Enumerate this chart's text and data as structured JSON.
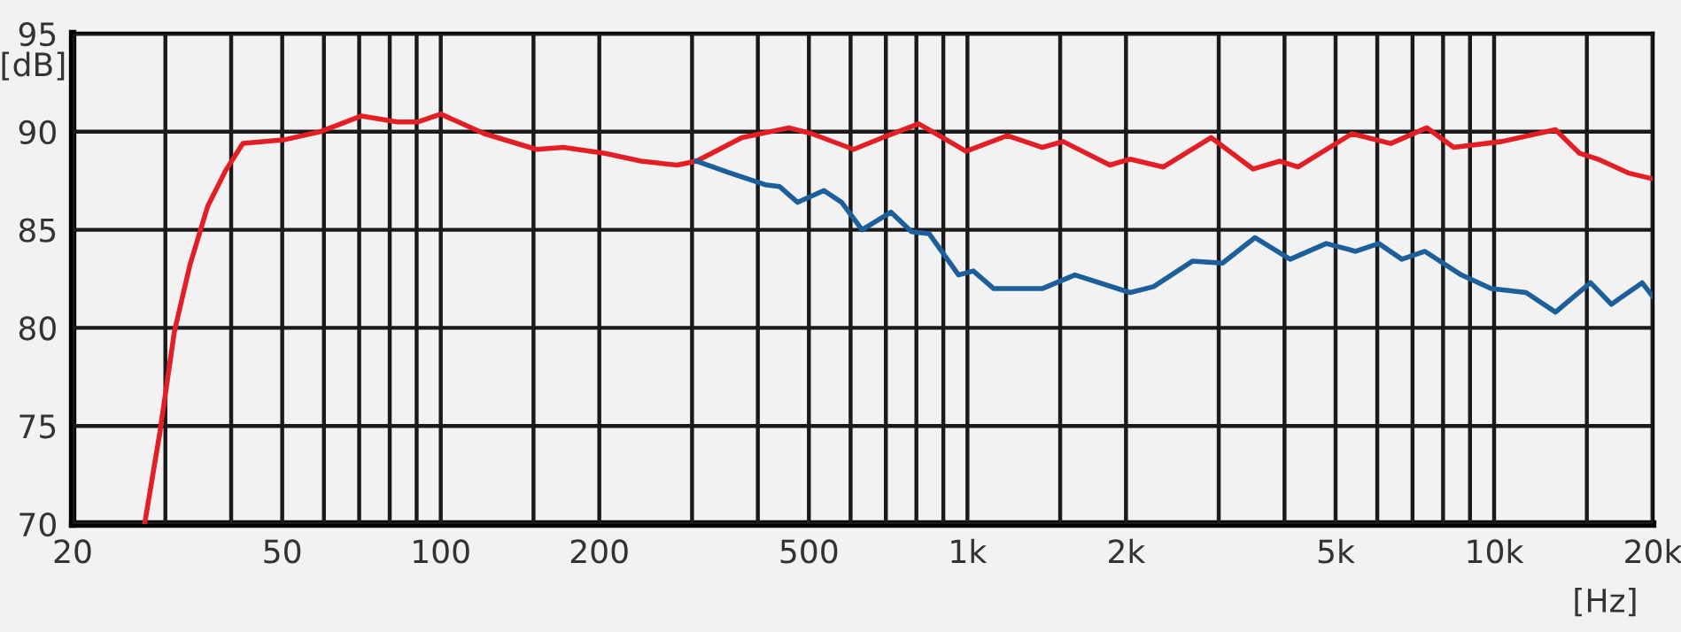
{
  "chart_data": {
    "type": "line",
    "xlabel": "[Hz]",
    "ylabel": "[dB]",
    "log": "x",
    "grid": true,
    "xlim": [
      20,
      20000
    ],
    "ylim": [
      70,
      95
    ],
    "xticks": [
      20,
      {
        "value": 30,
        "label": null
      },
      {
        "value": 40,
        "label": null
      },
      50,
      {
        "value": 60,
        "label": null
      },
      {
        "value": 70,
        "label": null
      },
      {
        "value": 80,
        "label": null
      },
      {
        "value": 90,
        "label": null
      },
      100,
      {
        "value": 150,
        "label": null
      },
      200,
      {
        "value": 300,
        "label": null
      },
      {
        "value": 400,
        "label": null
      },
      500,
      {
        "value": 600,
        "label": null
      },
      {
        "value": 700,
        "label": null
      },
      {
        "value": 800,
        "label": null
      },
      {
        "value": 900,
        "label": null
      },
      {
        "value": 1000,
        "label": "1k"
      },
      {
        "value": 1500,
        "label": null
      },
      {
        "value": 2000,
        "label": "2k"
      },
      {
        "value": 3000,
        "label": null
      },
      {
        "value": 4000,
        "label": null
      },
      {
        "value": 5000,
        "label": "5k"
      },
      {
        "value": 6000,
        "label": null
      },
      {
        "value": 7000,
        "label": null
      },
      {
        "value": 8000,
        "label": null
      },
      {
        "value": 9000,
        "label": null
      },
      {
        "value": 10000,
        "label": "10k"
      },
      {
        "value": 15000,
        "label": null
      },
      {
        "value": 20000,
        "label": "20k"
      }
    ],
    "yticks": [
      70,
      75,
      80,
      85,
      90,
      95
    ],
    "series": [
      {
        "color": "#e31e24",
        "x": [
          27.4,
          29.3,
          31.2,
          33.4,
          36.1,
          39,
          42.1,
          50.7,
          59,
          70.6,
          82.7,
          90.6,
          100,
          121,
          152,
          171,
          205,
          240,
          281,
          306,
          373,
          458,
          506,
          608,
          690,
          808,
          897,
          994,
          1190,
          1388,
          1519,
          1864,
          2036,
          2355,
          2903,
          3488,
          3923,
          4243,
          5370,
          6364,
          7450,
          8380,
          10340,
          13080,
          14530,
          15750,
          17960,
          20000
        ],
        "values": [
          70,
          74.7,
          79.8,
          83.2,
          86.2,
          88,
          89.4,
          89.6,
          90,
          90.8,
          90.5,
          90.5,
          90.9,
          89.9,
          89.1,
          89.2,
          88.9,
          88.5,
          88.3,
          88.5,
          89.7,
          90.2,
          89.9,
          89.1,
          89.7,
          90.4,
          89.7,
          89,
          89.8,
          89.2,
          89.5,
          88.3,
          88.6,
          88.2,
          89.7,
          88.1,
          88.5,
          88.2,
          89.9,
          89.4,
          90.2,
          89.2,
          89.5,
          90.1,
          88.9,
          88.6,
          87.9,
          87.6
        ]
      },
      {
        "color": "#1c5f9a",
        "x": [
          306,
          354,
          413,
          440,
          476,
          534,
          577,
          631,
          716,
          783,
          846,
          962,
          1026,
          1122,
          1386,
          1600,
          2036,
          2256,
          2674,
          3050,
          3514,
          4100,
          4800,
          5460,
          6040,
          6680,
          7390,
          8660,
          9870,
          11500,
          13080,
          15240,
          16700,
          19100,
          20000
        ],
        "values": [
          88.5,
          87.9,
          87.3,
          87.2,
          86.4,
          87,
          86.4,
          85,
          85.9,
          84.9,
          84.8,
          82.7,
          82.9,
          82,
          82,
          82.7,
          81.8,
          82.1,
          83.4,
          83.3,
          84.6,
          83.5,
          84.3,
          83.9,
          84.3,
          83.5,
          83.9,
          82.7,
          82,
          81.8,
          80.8,
          82.3,
          81.2,
          82.3,
          81.6
        ]
      }
    ]
  }
}
